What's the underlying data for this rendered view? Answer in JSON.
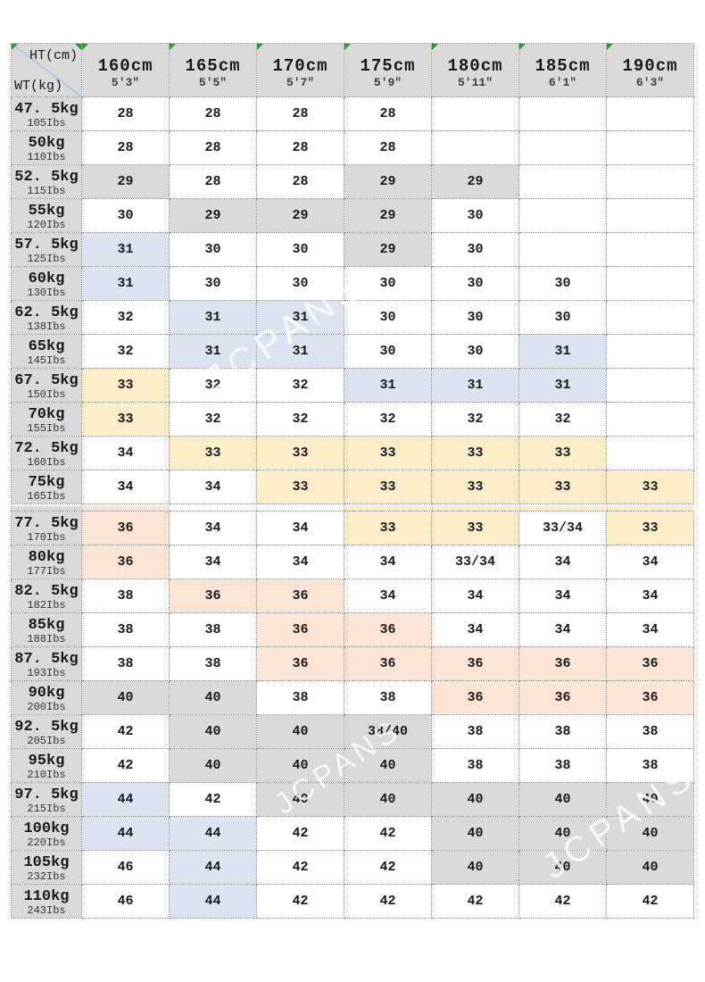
{
  "watermark": {
    "text": "JCPANS"
  },
  "colors": {
    "header_bg": "#d9d9d9",
    "marker_green": "#1d9e2c",
    "diagonal_blue": "#9cc2e5",
    "cell_map": {
      "w": "#ffffff",
      "g": "#d9d9d9",
      "b": "#dce3f0",
      "y": "#fbedc8",
      "p": "#fbe4d5"
    }
  },
  "chart_data": {
    "type": "table",
    "corner": {
      "top_right": "HT(cm)",
      "bottom_left": "WT(kg)"
    },
    "columns": [
      {
        "label": "160cm",
        "sub": "5'3\""
      },
      {
        "label": "165cm",
        "sub": "5'5\""
      },
      {
        "label": "170cm",
        "sub": "5'7\""
      },
      {
        "label": "175cm",
        "sub": "5'9\""
      },
      {
        "label": "180cm",
        "sub": "5'11\""
      },
      {
        "label": "185cm",
        "sub": "6'1\""
      },
      {
        "label": "190cm",
        "sub": "6'3\""
      }
    ],
    "sections": [
      {
        "rows": [
          {
            "kg": "47. 5kg",
            "lbs": "105Ibs",
            "cells": [
              {
                "v": "28",
                "c": "w"
              },
              {
                "v": "28",
                "c": "w"
              },
              {
                "v": "28",
                "c": "w"
              },
              {
                "v": "28",
                "c": "w"
              },
              {
                "v": "",
                "c": "w"
              },
              {
                "v": "",
                "c": "w"
              },
              {
                "v": "",
                "c": "w"
              }
            ]
          },
          {
            "kg": "50kg",
            "lbs": "110Ibs",
            "cells": [
              {
                "v": "28",
                "c": "w"
              },
              {
                "v": "28",
                "c": "w"
              },
              {
                "v": "28",
                "c": "w"
              },
              {
                "v": "28",
                "c": "w"
              },
              {
                "v": "",
                "c": "w"
              },
              {
                "v": "",
                "c": "w"
              },
              {
                "v": "",
                "c": "w"
              }
            ]
          },
          {
            "kg": "52. 5kg",
            "lbs": "115Ibs",
            "cells": [
              {
                "v": "29",
                "c": "g"
              },
              {
                "v": "28",
                "c": "w"
              },
              {
                "v": "28",
                "c": "w"
              },
              {
                "v": "29",
                "c": "g"
              },
              {
                "v": "29",
                "c": "g"
              },
              {
                "v": "",
                "c": "w"
              },
              {
                "v": "",
                "c": "w"
              }
            ]
          },
          {
            "kg": "55kg",
            "lbs": "120Ibs",
            "cells": [
              {
                "v": "30",
                "c": "w"
              },
              {
                "v": "29",
                "c": "g"
              },
              {
                "v": "29",
                "c": "g"
              },
              {
                "v": "29",
                "c": "g"
              },
              {
                "v": "30",
                "c": "w"
              },
              {
                "v": "",
                "c": "w"
              },
              {
                "v": "",
                "c": "w"
              }
            ]
          },
          {
            "kg": "57. 5kg",
            "lbs": "125Ibs",
            "cells": [
              {
                "v": "31",
                "c": "b"
              },
              {
                "v": "30",
                "c": "w"
              },
              {
                "v": "30",
                "c": "w"
              },
              {
                "v": "29",
                "c": "g"
              },
              {
                "v": "30",
                "c": "w"
              },
              {
                "v": "",
                "c": "w"
              },
              {
                "v": "",
                "c": "w"
              }
            ]
          },
          {
            "kg": "60kg",
            "lbs": "130Ibs",
            "cells": [
              {
                "v": "31",
                "c": "b"
              },
              {
                "v": "30",
                "c": "w"
              },
              {
                "v": "30",
                "c": "w"
              },
              {
                "v": "30",
                "c": "w"
              },
              {
                "v": "30",
                "c": "w"
              },
              {
                "v": "30",
                "c": "w"
              },
              {
                "v": "",
                "c": "w"
              }
            ]
          },
          {
            "kg": "62. 5kg",
            "lbs": "138Ibs",
            "cells": [
              {
                "v": "32",
                "c": "w"
              },
              {
                "v": "31",
                "c": "b"
              },
              {
                "v": "31",
                "c": "b"
              },
              {
                "v": "30",
                "c": "w"
              },
              {
                "v": "30",
                "c": "w"
              },
              {
                "v": "30",
                "c": "w"
              },
              {
                "v": "",
                "c": "w"
              }
            ]
          },
          {
            "kg": "65kg",
            "lbs": "145Ibs",
            "cells": [
              {
                "v": "32",
                "c": "w"
              },
              {
                "v": "31",
                "c": "b"
              },
              {
                "v": "31",
                "c": "b"
              },
              {
                "v": "30",
                "c": "w"
              },
              {
                "v": "30",
                "c": "w"
              },
              {
                "v": "31",
                "c": "b"
              },
              {
                "v": "",
                "c": "w"
              }
            ]
          },
          {
            "kg": "67. 5kg",
            "lbs": "150Ibs",
            "cells": [
              {
                "v": "33",
                "c": "y"
              },
              {
                "v": "32",
                "c": "w"
              },
              {
                "v": "32",
                "c": "w"
              },
              {
                "v": "31",
                "c": "b"
              },
              {
                "v": "31",
                "c": "b"
              },
              {
                "v": "31",
                "c": "b"
              },
              {
                "v": "",
                "c": "w"
              }
            ]
          },
          {
            "kg": "70kg",
            "lbs": "155Ibs",
            "cells": [
              {
                "v": "33",
                "c": "y"
              },
              {
                "v": "32",
                "c": "w"
              },
              {
                "v": "32",
                "c": "w"
              },
              {
                "v": "32",
                "c": "w"
              },
              {
                "v": "32",
                "c": "w"
              },
              {
                "v": "32",
                "c": "w"
              },
              {
                "v": "",
                "c": "w"
              }
            ]
          },
          {
            "kg": "72. 5kg",
            "lbs": "160Ibs",
            "cells": [
              {
                "v": "34",
                "c": "w"
              },
              {
                "v": "33",
                "c": "y"
              },
              {
                "v": "33",
                "c": "y"
              },
              {
                "v": "33",
                "c": "y"
              },
              {
                "v": "33",
                "c": "y"
              },
              {
                "v": "33",
                "c": "y"
              },
              {
                "v": "",
                "c": "w"
              }
            ]
          },
          {
            "kg": "75kg",
            "lbs": "165Ibs",
            "cells": [
              {
                "v": "34",
                "c": "w"
              },
              {
                "v": "34",
                "c": "w"
              },
              {
                "v": "33",
                "c": "y"
              },
              {
                "v": "33",
                "c": "y"
              },
              {
                "v": "33",
                "c": "y"
              },
              {
                "v": "33",
                "c": "y"
              },
              {
                "v": "33",
                "c": "y"
              }
            ]
          }
        ]
      },
      {
        "rows": [
          {
            "kg": "77. 5kg",
            "lbs": "170Ibs",
            "cells": [
              {
                "v": "36",
                "c": "p"
              },
              {
                "v": "34",
                "c": "w"
              },
              {
                "v": "34",
                "c": "w"
              },
              {
                "v": "33",
                "c": "y"
              },
              {
                "v": "33",
                "c": "y"
              },
              {
                "v": "33/34",
                "c": "w"
              },
              {
                "v": "33",
                "c": "y"
              }
            ]
          },
          {
            "kg": "80kg",
            "lbs": "177Ibs",
            "cells": [
              {
                "v": "36",
                "c": "p"
              },
              {
                "v": "34",
                "c": "w"
              },
              {
                "v": "34",
                "c": "w"
              },
              {
                "v": "34",
                "c": "w"
              },
              {
                "v": "33/34",
                "c": "w"
              },
              {
                "v": "34",
                "c": "w"
              },
              {
                "v": "34",
                "c": "w"
              }
            ]
          },
          {
            "kg": "82. 5kg",
            "lbs": "182Ibs",
            "cells": [
              {
                "v": "38",
                "c": "w"
              },
              {
                "v": "36",
                "c": "p"
              },
              {
                "v": "36",
                "c": "p"
              },
              {
                "v": "34",
                "c": "w"
              },
              {
                "v": "34",
                "c": "w"
              },
              {
                "v": "34",
                "c": "w"
              },
              {
                "v": "34",
                "c": "w"
              }
            ]
          },
          {
            "kg": "85kg",
            "lbs": "188Ibs",
            "cells": [
              {
                "v": "38",
                "c": "w"
              },
              {
                "v": "38",
                "c": "w"
              },
              {
                "v": "36",
                "c": "p"
              },
              {
                "v": "36",
                "c": "p"
              },
              {
                "v": "34",
                "c": "w"
              },
              {
                "v": "34",
                "c": "w"
              },
              {
                "v": "34",
                "c": "w"
              }
            ]
          },
          {
            "kg": "87. 5kg",
            "lbs": "193Ibs",
            "cells": [
              {
                "v": "38",
                "c": "w"
              },
              {
                "v": "38",
                "c": "w"
              },
              {
                "v": "36",
                "c": "p"
              },
              {
                "v": "36",
                "c": "p"
              },
              {
                "v": "36",
                "c": "p"
              },
              {
                "v": "36",
                "c": "p"
              },
              {
                "v": "36",
                "c": "p"
              }
            ]
          },
          {
            "kg": "90kg",
            "lbs": "200Ibs",
            "cells": [
              {
                "v": "40",
                "c": "g"
              },
              {
                "v": "40",
                "c": "g"
              },
              {
                "v": "38",
                "c": "w"
              },
              {
                "v": "38",
                "c": "w"
              },
              {
                "v": "36",
                "c": "p"
              },
              {
                "v": "36",
                "c": "p"
              },
              {
                "v": "36",
                "c": "p"
              }
            ]
          },
          {
            "kg": "92. 5kg",
            "lbs": "205Ibs",
            "cells": [
              {
                "v": "42",
                "c": "w"
              },
              {
                "v": "40",
                "c": "g"
              },
              {
                "v": "40",
                "c": "g"
              },
              {
                "v": "38/40",
                "c": "g"
              },
              {
                "v": "38",
                "c": "w"
              },
              {
                "v": "38",
                "c": "w"
              },
              {
                "v": "38",
                "c": "w"
              }
            ]
          },
          {
            "kg": "95kg",
            "lbs": "210Ibs",
            "cells": [
              {
                "v": "42",
                "c": "w"
              },
              {
                "v": "40",
                "c": "g"
              },
              {
                "v": "40",
                "c": "g"
              },
              {
                "v": "40",
                "c": "g"
              },
              {
                "v": "38",
                "c": "w"
              },
              {
                "v": "38",
                "c": "w"
              },
              {
                "v": "38",
                "c": "w"
              }
            ]
          },
          {
            "kg": "97. 5kg",
            "lbs": "215Ibs",
            "cells": [
              {
                "v": "44",
                "c": "b"
              },
              {
                "v": "42",
                "c": "w"
              },
              {
                "v": "40",
                "c": "g"
              },
              {
                "v": "40",
                "c": "g"
              },
              {
                "v": "40",
                "c": "g"
              },
              {
                "v": "40",
                "c": "g"
              },
              {
                "v": "40",
                "c": "g"
              }
            ]
          },
          {
            "kg": "100kg",
            "lbs": "220Ibs",
            "cells": [
              {
                "v": "44",
                "c": "b"
              },
              {
                "v": "44",
                "c": "b"
              },
              {
                "v": "42",
                "c": "w"
              },
              {
                "v": "42",
                "c": "w"
              },
              {
                "v": "40",
                "c": "g"
              },
              {
                "v": "40",
                "c": "g"
              },
              {
                "v": "40",
                "c": "g"
              }
            ]
          },
          {
            "kg": "105kg",
            "lbs": "232Ibs",
            "cells": [
              {
                "v": "46",
                "c": "w"
              },
              {
                "v": "44",
                "c": "b"
              },
              {
                "v": "42",
                "c": "w"
              },
              {
                "v": "42",
                "c": "w"
              },
              {
                "v": "40",
                "c": "g"
              },
              {
                "v": "40",
                "c": "g"
              },
              {
                "v": "40",
                "c": "g"
              }
            ]
          },
          {
            "kg": "110kg",
            "lbs": "243Ibs",
            "cells": [
              {
                "v": "46",
                "c": "w"
              },
              {
                "v": "44",
                "c": "b"
              },
              {
                "v": "42",
                "c": "w"
              },
              {
                "v": "42",
                "c": "w"
              },
              {
                "v": "42",
                "c": "w"
              },
              {
                "v": "42",
                "c": "w"
              },
              {
                "v": "42",
                "c": "w"
              }
            ]
          }
        ]
      }
    ]
  },
  "seam": {
    "cells": [
      "g",
      "p",
      "w",
      "w",
      "y",
      "y",
      "y",
      "y"
    ]
  }
}
